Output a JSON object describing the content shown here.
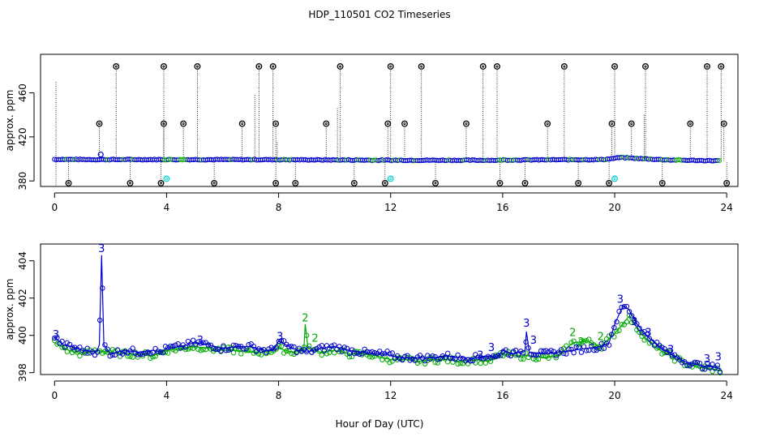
{
  "title": "HDP_110501  CO2 Timeseries",
  "xlabel": "Hour of Day (UTC)",
  "colors": {
    "axis": "#000000",
    "outlier_marker": "#000000",
    "flag_cyan": "#00d8d8",
    "series_blue": "#0000cc",
    "series_green": "#00aa00"
  },
  "chart_data": [
    {
      "type": "scatter",
      "name": "top-panel",
      "ylabel": "approx. ppm",
      "xlim": [
        -0.5,
        24.4
      ],
      "ylim": [
        375,
        495
      ],
      "x_ticks": [
        0,
        4,
        8,
        12,
        16,
        20,
        24
      ],
      "y_ticks": [
        380,
        420,
        460
      ],
      "baseline": [
        [
          0,
          399.6
        ],
        [
          1.6,
          399.4
        ],
        [
          4,
          399.4
        ],
        [
          8,
          399.3
        ],
        [
          12,
          398.8
        ],
        [
          15.8,
          398.8
        ],
        [
          16,
          399.0
        ],
        [
          19.6,
          399.4
        ],
        [
          20.2,
          401.3
        ],
        [
          21,
          400.2
        ],
        [
          22,
          399.0
        ],
        [
          23.8,
          398.3
        ]
      ],
      "high_flags": [
        {
          "x": 2.2,
          "y": 484
        },
        {
          "x": 3.9,
          "y": 484
        },
        {
          "x": 5.1,
          "y": 484
        },
        {
          "x": 7.3,
          "y": 484
        },
        {
          "x": 7.8,
          "y": 484
        },
        {
          "x": 10.2,
          "y": 484
        },
        {
          "x": 12.0,
          "y": 484
        },
        {
          "x": 13.1,
          "y": 484
        },
        {
          "x": 15.3,
          "y": 484
        },
        {
          "x": 15.8,
          "y": 484
        },
        {
          "x": 18.2,
          "y": 484
        },
        {
          "x": 20.0,
          "y": 484
        },
        {
          "x": 21.1,
          "y": 484
        },
        {
          "x": 23.3,
          "y": 484
        },
        {
          "x": 23.8,
          "y": 484
        }
      ],
      "mid_flags": [
        {
          "x": 1.6,
          "y": 432
        },
        {
          "x": 3.9,
          "y": 432
        },
        {
          "x": 4.6,
          "y": 432
        },
        {
          "x": 6.7,
          "y": 432
        },
        {
          "x": 7.9,
          "y": 432
        },
        {
          "x": 9.7,
          "y": 432
        },
        {
          "x": 11.9,
          "y": 432
        },
        {
          "x": 12.5,
          "y": 432
        },
        {
          "x": 14.7,
          "y": 432
        },
        {
          "x": 17.6,
          "y": 432
        },
        {
          "x": 19.9,
          "y": 432
        },
        {
          "x": 20.6,
          "y": 432
        },
        {
          "x": 22.7,
          "y": 432
        },
        {
          "x": 23.9,
          "y": 432
        }
      ],
      "low_flags": [
        {
          "x": 0.5,
          "y": 378
        },
        {
          "x": 2.7,
          "y": 378
        },
        {
          "x": 3.8,
          "y": 378
        },
        {
          "x": 5.7,
          "y": 378
        },
        {
          "x": 7.9,
          "y": 378
        },
        {
          "x": 8.6,
          "y": 378
        },
        {
          "x": 10.7,
          "y": 378
        },
        {
          "x": 11.8,
          "y": 378
        },
        {
          "x": 13.6,
          "y": 378
        },
        {
          "x": 15.9,
          "y": 378
        },
        {
          "x": 16.8,
          "y": 378
        },
        {
          "x": 18.7,
          "y": 378
        },
        {
          "x": 19.8,
          "y": 378
        },
        {
          "x": 21.7,
          "y": 378
        },
        {
          "x": 24.0,
          "y": 378
        }
      ],
      "cyan_flags": [
        {
          "x": 4.0,
          "y": 382
        },
        {
          "x": 12.0,
          "y": 382
        },
        {
          "x": 20.0,
          "y": 382
        }
      ],
      "spike": {
        "x": 1.65,
        "y": 404
      }
    },
    {
      "type": "scatter",
      "name": "bottom-panel",
      "ylabel": "approx. ppm",
      "xlim": [
        -0.5,
        24.4
      ],
      "ylim": [
        397.9,
        404.9
      ],
      "x_ticks": [
        0,
        4,
        8,
        12,
        16,
        20,
        24
      ],
      "y_ticks": [
        398,
        400,
        402,
        404
      ],
      "series_blue": [
        [
          0,
          399.9
        ],
        [
          0.3,
          399.5
        ],
        [
          0.6,
          399.4
        ],
        [
          1.0,
          399.2
        ],
        [
          1.5,
          399.1
        ],
        [
          1.6,
          399.5
        ],
        [
          1.68,
          404.3
        ],
        [
          1.76,
          399.5
        ],
        [
          2.0,
          399.0
        ],
        [
          2.5,
          399.2
        ],
        [
          3.0,
          399.1
        ],
        [
          3.5,
          399.2
        ],
        [
          3.8,
          399.1
        ],
        [
          4.0,
          399.3
        ],
        [
          4.5,
          399.4
        ],
        [
          5.0,
          399.6
        ],
        [
          5.5,
          399.5
        ],
        [
          6.0,
          399.3
        ],
        [
          6.5,
          399.4
        ],
        [
          7.0,
          399.4
        ],
        [
          7.5,
          399.2
        ],
        [
          7.8,
          399.2
        ],
        [
          8.0,
          399.7
        ],
        [
          8.5,
          399.3
        ],
        [
          9.0,
          399.1
        ],
        [
          9.5,
          399.3
        ],
        [
          10.0,
          399.4
        ],
        [
          10.5,
          399.2
        ],
        [
          11.0,
          399.1
        ],
        [
          11.5,
          399.0
        ],
        [
          11.9,
          399.0
        ],
        [
          12.0,
          398.9
        ],
        [
          12.5,
          398.8
        ],
        [
          13.0,
          398.8
        ],
        [
          13.5,
          398.8
        ],
        [
          14.0,
          398.9
        ],
        [
          14.5,
          398.8
        ],
        [
          15.0,
          398.8
        ],
        [
          15.5,
          398.9
        ],
        [
          15.8,
          398.8
        ],
        [
          16.0,
          399.2
        ],
        [
          16.4,
          399.0
        ],
        [
          16.8,
          399.2
        ],
        [
          16.85,
          400.2
        ],
        [
          16.95,
          399.1
        ],
        [
          17.5,
          399.0
        ],
        [
          18.0,
          399.1
        ],
        [
          18.5,
          399.2
        ],
        [
          19.0,
          399.3
        ],
        [
          19.5,
          399.4
        ],
        [
          19.8,
          399.6
        ],
        [
          20.0,
          400.6
        ],
        [
          20.3,
          401.6
        ],
        [
          20.5,
          401.4
        ],
        [
          20.8,
          400.6
        ],
        [
          21.2,
          399.9
        ],
        [
          21.6,
          399.4
        ],
        [
          22.0,
          399.0
        ],
        [
          22.5,
          398.6
        ],
        [
          23.0,
          398.4
        ],
        [
          23.5,
          398.3
        ],
        [
          23.8,
          398.2
        ]
      ],
      "series_green": [
        [
          0,
          399.6
        ],
        [
          0.5,
          399.2
        ],
        [
          1.0,
          399.0
        ],
        [
          1.5,
          399.2
        ],
        [
          2.0,
          399.1
        ],
        [
          2.5,
          399.0
        ],
        [
          3.0,
          399.0
        ],
        [
          3.5,
          398.9
        ],
        [
          4.0,
          399.2
        ],
        [
          4.5,
          399.3
        ],
        [
          5.0,
          399.4
        ],
        [
          5.5,
          399.3
        ],
        [
          6.0,
          399.2
        ],
        [
          6.5,
          399.2
        ],
        [
          7.0,
          399.1
        ],
        [
          7.5,
          399.1
        ],
        [
          8.0,
          399.3
        ],
        [
          8.5,
          399.1
        ],
        [
          8.9,
          399.2
        ],
        [
          8.95,
          400.6
        ],
        [
          9.05,
          399.3
        ],
        [
          9.5,
          399.1
        ],
        [
          10.0,
          399.2
        ],
        [
          10.5,
          399.0
        ],
        [
          11.0,
          399.0
        ],
        [
          11.5,
          398.9
        ],
        [
          12.0,
          398.7
        ],
        [
          12.5,
          398.7
        ],
        [
          13.0,
          398.6
        ],
        [
          13.5,
          398.7
        ],
        [
          14.0,
          398.7
        ],
        [
          14.5,
          398.6
        ],
        [
          15.0,
          398.7
        ],
        [
          15.5,
          398.6
        ],
        [
          16.0,
          399.0
        ],
        [
          16.5,
          398.9
        ],
        [
          17.0,
          398.9
        ],
        [
          17.5,
          398.8
        ],
        [
          18.0,
          398.9
        ],
        [
          18.5,
          399.6
        ],
        [
          19.0,
          399.7
        ],
        [
          19.5,
          399.4
        ],
        [
          20.0,
          400.1
        ],
        [
          20.5,
          401.0
        ],
        [
          21.0,
          400.0
        ],
        [
          21.5,
          399.3
        ],
        [
          22.0,
          398.9
        ],
        [
          22.5,
          398.5
        ],
        [
          23.0,
          398.3
        ],
        [
          23.5,
          398.2
        ],
        [
          23.8,
          398.1
        ]
      ],
      "labels": [
        {
          "text": "3",
          "x": 0.05,
          "y": 399.9,
          "series": "blue"
        },
        {
          "text": "3",
          "x": 1.68,
          "y": 404.5,
          "series": "blue"
        },
        {
          "text": "3",
          "x": 5.2,
          "y": 399.6,
          "series": "blue"
        },
        {
          "text": "3",
          "x": 8.05,
          "y": 399.8,
          "series": "blue"
        },
        {
          "text": "2",
          "x": 8.95,
          "y": 400.8,
          "series": "green"
        },
        {
          "text": "2",
          "x": 9.3,
          "y": 399.7,
          "series": "green"
        },
        {
          "text": "3",
          "x": 15.2,
          "y": 398.8,
          "series": "blue"
        },
        {
          "text": "3",
          "x": 15.6,
          "y": 399.2,
          "series": "blue"
        },
        {
          "text": "3",
          "x": 16.85,
          "y": 400.5,
          "series": "blue"
        },
        {
          "text": "3",
          "x": 17.1,
          "y": 399.6,
          "series": "blue"
        },
        {
          "text": "2",
          "x": 18.5,
          "y": 400.0,
          "series": "green"
        },
        {
          "text": "2",
          "x": 18.8,
          "y": 399.5,
          "series": "green"
        },
        {
          "text": "2",
          "x": 19.5,
          "y": 399.8,
          "series": "green"
        },
        {
          "text": "3",
          "x": 20.2,
          "y": 401.8,
          "series": "blue"
        },
        {
          "text": "3",
          "x": 20.7,
          "y": 400.6,
          "series": "blue"
        },
        {
          "text": "3",
          "x": 21.2,
          "y": 400.0,
          "series": "blue"
        },
        {
          "text": "3",
          "x": 22.0,
          "y": 399.1,
          "series": "blue"
        },
        {
          "text": "3",
          "x": 23.3,
          "y": 398.6,
          "series": "blue"
        },
        {
          "text": "3",
          "x": 23.7,
          "y": 398.7,
          "series": "blue"
        }
      ]
    }
  ]
}
